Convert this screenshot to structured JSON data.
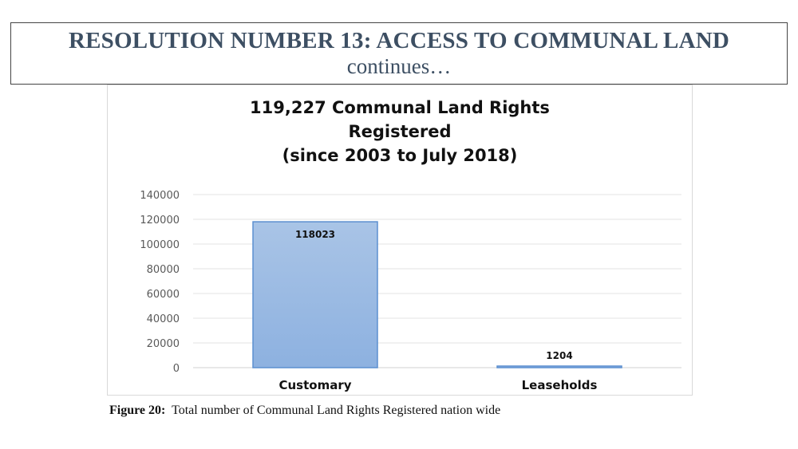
{
  "slide": {
    "heading": "RESOLUTION NUMBER 13: ACCESS TO COMMUNAL LAND",
    "subheading": "continues…"
  },
  "caption": {
    "label": "Figure 20:",
    "text": "Total number of Communal Land Rights Registered nation wide"
  },
  "chart_data": {
    "type": "bar",
    "title_lines": [
      "119,227 Communal Land Rights",
      "Registered",
      "(since 2003 to July 2018)"
    ],
    "categories": [
      "Customary",
      "Leaseholds"
    ],
    "values": [
      118023,
      1204
    ],
    "data_labels": [
      "118023",
      "1204"
    ],
    "ylim": [
      0,
      140000
    ],
    "yticks": [
      0,
      20000,
      40000,
      60000,
      80000,
      100000,
      120000,
      140000
    ],
    "ytick_labels": [
      "0",
      "20000",
      "40000",
      "60000",
      "80000",
      "100000",
      "120000",
      "140000"
    ],
    "grid": true,
    "legend": "none",
    "bar_color_top": "#a9c4e6",
    "bar_color_bottom": "#8db1e0",
    "bar_border": "#5b8fd0"
  }
}
